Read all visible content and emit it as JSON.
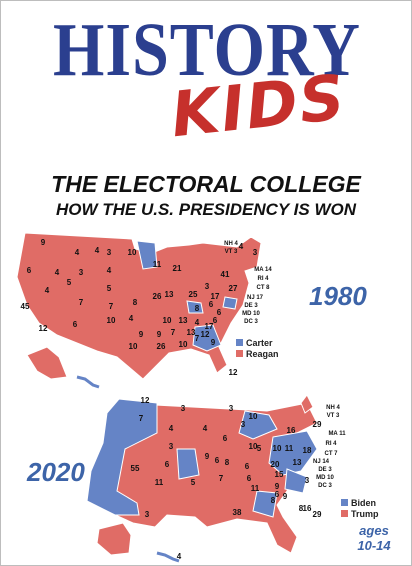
{
  "brand": {
    "line1": "HISTORY",
    "line2": "KIDS"
  },
  "title": {
    "main": "THE ELECTORAL COLLEGE",
    "sub": "HOW THE U.S. PRESIDENCY IS WON"
  },
  "colors": {
    "blue": "#6584c6",
    "red": "#e06c66",
    "brand_blue": "#2b3f8f",
    "brand_red": "#c6302c",
    "accent_blue": "#3d64a8"
  },
  "map_1980": {
    "year": "1980",
    "legend": [
      {
        "label": "Carter",
        "color": "#6584c6"
      },
      {
        "label": "Reagan",
        "color": "#e06c66"
      }
    ],
    "labels": [
      "9",
      "4",
      "4",
      "3",
      "10",
      "11",
      "21",
      "4",
      "6",
      "4",
      "3",
      "4",
      "41",
      "3",
      "4",
      "5",
      "27",
      "45",
      "7",
      "5",
      "26",
      "13",
      "25",
      "3",
      "7",
      "8",
      "17",
      "12",
      "6",
      "10",
      "4",
      "8",
      "6",
      "6",
      "9",
      "10",
      "13",
      "4",
      "9",
      "7",
      "13",
      "12",
      "6",
      "10",
      "26",
      "10",
      "7",
      "9",
      "12",
      "17"
    ],
    "small_labels": [
      "NH 4",
      "VT 3",
      "MA 14",
      "RI 4",
      "CT 8",
      "NJ 17",
      "DE 3",
      "MD 10",
      "DC 3"
    ]
  },
  "map_2020": {
    "year": "2020",
    "legend": [
      {
        "label": "Biden",
        "color": "#6584c6"
      },
      {
        "label": "Trump",
        "color": "#e06c66"
      }
    ],
    "labels": [
      "12",
      "3",
      "3",
      "10",
      "4",
      "7",
      "4",
      "3",
      "3",
      "10",
      "16",
      "29",
      "6",
      "6",
      "5",
      "10",
      "20",
      "11",
      "18",
      "55",
      "6",
      "9",
      "8",
      "6",
      "13",
      "15",
      "11",
      "5",
      "7",
      "6",
      "11",
      "9",
      "3",
      "38",
      "8",
      "6",
      "9",
      "8",
      "16",
      "29",
      "4",
      "3"
    ],
    "small_labels": [
      "NH 4",
      "VT 3",
      "MA 11",
      "RI 4",
      "CT 7",
      "NJ 14",
      "DE 3",
      "MD 10",
      "DC 3"
    ]
  },
  "ages": {
    "line1": "ages",
    "line2": "10-14"
  }
}
